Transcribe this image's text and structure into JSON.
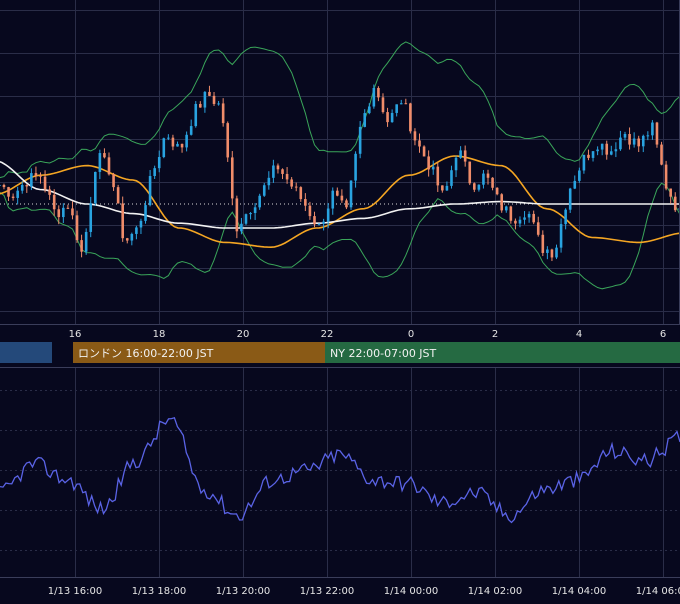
{
  "colors": {
    "background": "#07081e",
    "grid": "#2a2d48",
    "candle_up": "#29a3e0",
    "candle_down": "#f08c6a",
    "ma_fast": "#f5a623",
    "ma_slow": "#f2f2f2",
    "bollinger": "#3aa55a",
    "oscillator": "#5a63e6",
    "session_tokyo": "#24497a",
    "session_london": "#8a5a16",
    "session_ny": "#256a42",
    "axis_text": "#e6e6e6"
  },
  "price_axis_labels": [
    "16",
    "18",
    "20",
    "22",
    "0",
    "2",
    "4",
    "6"
  ],
  "sessions": [
    {
      "name": "tokyo",
      "label": ""
    },
    {
      "name": "london",
      "label": "ロンドン 16:00-22:00 JST"
    },
    {
      "name": "ny",
      "label": "NY 22:00-07:00 JST"
    }
  ],
  "time_axis_labels": [
    "1/13 16:00",
    "1/13 18:00",
    "1/13 20:00",
    "1/13 22:00",
    "1/14 00:00",
    "1/14 02:00",
    "1/14 04:00",
    "1/14 06:00"
  ],
  "chart_data": {
    "type": "candlestick",
    "hour_offsets": [
      -0.2,
      0.5,
      1.3,
      2.0,
      2.8,
      3.5,
      4.3,
      5.0,
      5.7,
      6.4
    ],
    "close_path": [
      0.48,
      0.44,
      0.5,
      0.52,
      0.36,
      0.4,
      0.18,
      0.6,
      0.54,
      0.24,
      0.3,
      0.52,
      0.7,
      0.62,
      0.78,
      0.86,
      0.8,
      0.3,
      0.38,
      0.46,
      0.56,
      0.48,
      0.4,
      0.3,
      0.44,
      0.36,
      0.72,
      0.9,
      0.74,
      0.84,
      0.66,
      0.56,
      0.42,
      0.64,
      0.48,
      0.52,
      0.4,
      0.34,
      0.38,
      0.22,
      0.2,
      0.46,
      0.58,
      0.66,
      0.62,
      0.7,
      0.64,
      0.72,
      0.48,
      0.36
    ],
    "oscillator_levels": [
      0.42,
      0.6,
      0.5,
      0.32,
      0.62,
      0.88,
      0.44,
      0.28,
      0.5,
      0.56,
      0.66,
      0.5,
      0.48,
      0.36,
      0.42,
      0.28,
      0.44,
      0.5,
      0.68,
      0.62,
      0.76
    ],
    "moving_averages": [
      {
        "name": "fast",
        "levels": [
          0.44,
          0.52,
          0.56,
          0.5,
          0.3,
          0.24,
          0.22,
          0.3,
          0.38,
          0.52,
          0.6,
          0.56,
          0.38,
          0.26,
          0.24,
          0.28
        ]
      },
      {
        "name": "slow",
        "levels": [
          0.58,
          0.46,
          0.4,
          0.36,
          0.32,
          0.3,
          0.3,
          0.32,
          0.34,
          0.38,
          0.4,
          0.41,
          0.4,
          0.4,
          0.4,
          0.4
        ]
      }
    ],
    "grid": true
  }
}
